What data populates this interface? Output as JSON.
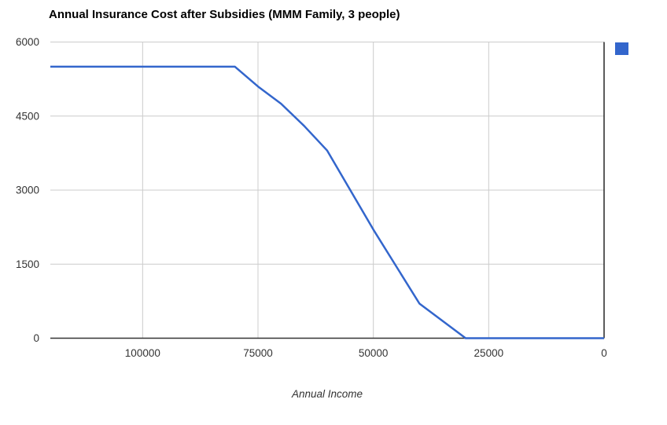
{
  "chart_data": {
    "type": "line",
    "title": "Annual Insurance Cost after Subsidies (MMM Family, 3 people)",
    "xlabel": "Annual Income",
    "ylabel": "",
    "x_reversed": true,
    "xlim": [
      120000,
      0
    ],
    "ylim": [
      0,
      6000
    ],
    "x_ticks": [
      100000,
      75000,
      50000,
      25000,
      0
    ],
    "y_ticks": [
      0,
      1500,
      3000,
      4500,
      6000
    ],
    "grid": true,
    "legend_position": "top-right",
    "series": [
      {
        "color": "#3366cc",
        "points": [
          [
            120000,
            5500
          ],
          [
            80000,
            5500
          ],
          [
            75000,
            5100
          ],
          [
            70000,
            4750
          ],
          [
            65000,
            4300
          ],
          [
            60000,
            3800
          ],
          [
            50000,
            2200
          ],
          [
            40000,
            700
          ],
          [
            30000,
            0
          ],
          [
            0,
            0
          ]
        ]
      }
    ]
  },
  "colors": {
    "series_blue": "#3366cc",
    "gridline": "#cccccc",
    "axis": "#333333",
    "tick_label": "#333333",
    "title": "#000000",
    "background": "#ffffff"
  }
}
